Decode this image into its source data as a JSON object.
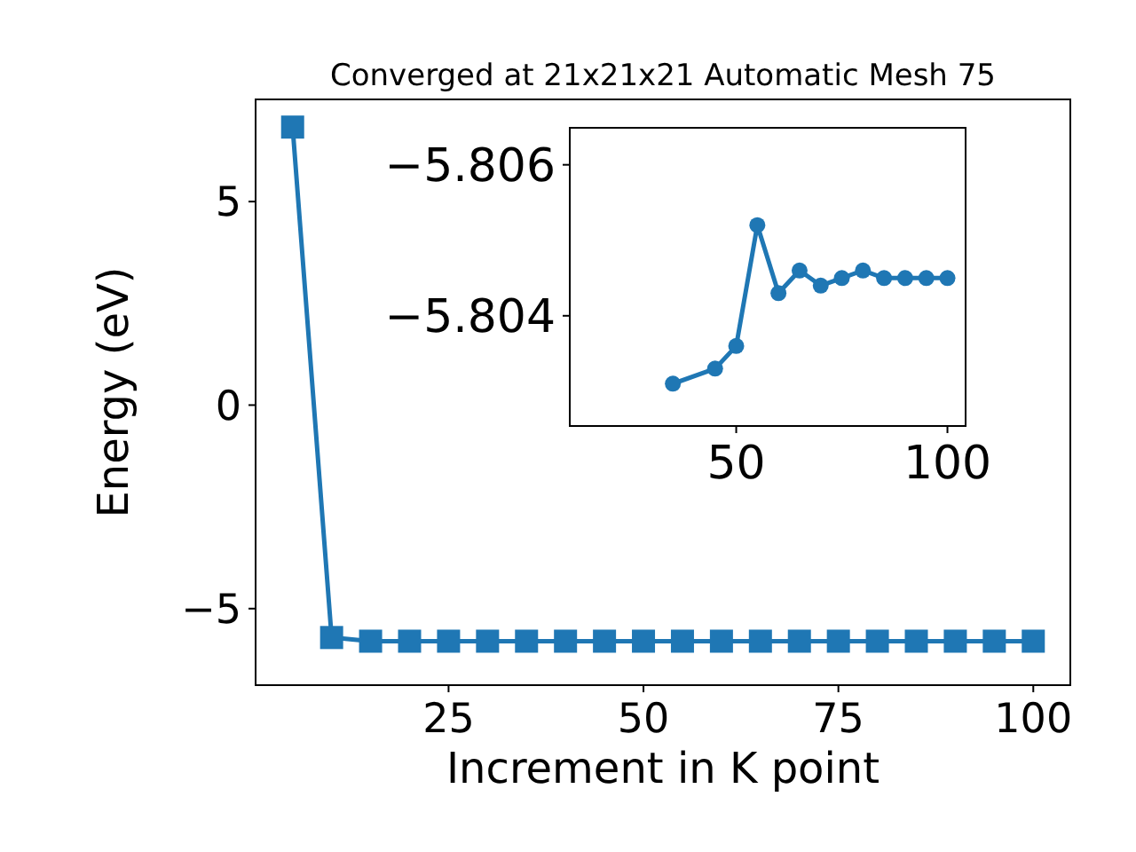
{
  "chart_data": [
    {
      "type": "line",
      "title": "Converged at 21x21x21 Automatic Mesh 75",
      "xlabel": "Increment in K point",
      "ylabel": "Energy (eV)",
      "marker": "square",
      "grid": false,
      "x": [
        5,
        10,
        15,
        20,
        25,
        30,
        35,
        40,
        45,
        50,
        55,
        60,
        65,
        70,
        75,
        80,
        85,
        90,
        95,
        100
      ],
      "series": [
        {
          "color": "#1f77b4",
          "values": [
            6.83,
            -5.71,
            -5.8,
            -5.8,
            -5.8,
            -5.8,
            -5.8,
            -5.8,
            -5.8,
            -5.8,
            -5.8,
            -5.8,
            -5.8,
            -5.8,
            -5.8,
            -5.8,
            -5.8,
            -5.8,
            -5.8,
            -5.8
          ]
        }
      ],
      "xlim": [
        0.25,
        104.75
      ],
      "xticks": [
        25,
        50,
        75,
        100
      ],
      "ylim": [
        -6.88,
        7.51
      ],
      "yticks": [
        {
          "value": -5,
          "label": "−5"
        },
        0,
        5
      ]
    },
    {
      "type": "line",
      "marker": "circle",
      "grid": false,
      "x": [
        35,
        45,
        50,
        55,
        60,
        65,
        70,
        75,
        80,
        85,
        90,
        95,
        100
      ],
      "series": [
        {
          "color": "#1f77b4",
          "values": [
            -5.8031,
            -5.8033,
            -5.8036,
            -5.8052,
            -5.8043,
            -5.8046,
            -5.8044,
            -5.8045,
            -5.8046,
            -5.8045,
            -5.8045,
            -5.8045,
            -5.8045
          ]
        }
      ],
      "xlim": [
        10.6,
        104.3
      ],
      "xticks": [
        50,
        100
      ],
      "ylim": [
        -5.80254,
        -5.80649
      ],
      "yticks": [
        {
          "value": -5.806,
          "label": "−5.806"
        },
        {
          "value": -5.804,
          "label": "−5.804"
        }
      ]
    }
  ]
}
